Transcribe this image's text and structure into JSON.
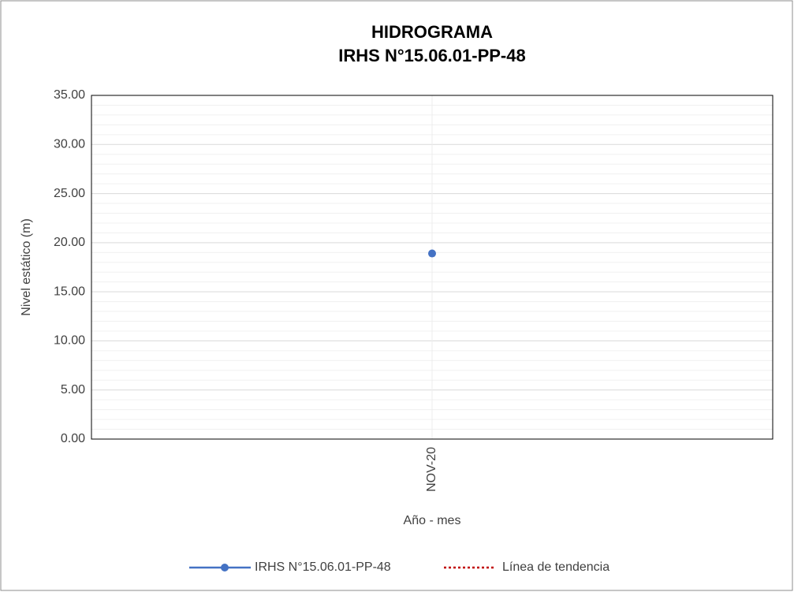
{
  "chart_data": {
    "type": "line",
    "title": "HIDROGRAMA",
    "subtitle": "IRHS N°15.06.01-PP-48",
    "x_label": "Año - mes",
    "y_label": "Nivel estático (m)",
    "categories": [
      "NOV-20"
    ],
    "series": [
      {
        "name": "IRHS N°15.06.01-PP-48",
        "color": "#4472c4",
        "values": [
          18.9
        ]
      }
    ],
    "trendline": {
      "name": "Línea de tendencia",
      "color": "#c00000"
    },
    "ylim": [
      0,
      35
    ],
    "yticks": [
      {
        "value": 0,
        "label": "0.00"
      },
      {
        "value": 5,
        "label": "5.00"
      },
      {
        "value": 10,
        "label": "10.00"
      },
      {
        "value": 15,
        "label": "15.00"
      },
      {
        "value": 20,
        "label": "20.00"
      },
      {
        "value": 25,
        "label": "25.00"
      },
      {
        "value": 30,
        "label": "30.00"
      },
      {
        "value": 35,
        "label": "35.00"
      }
    ],
    "yminorticks": [
      1,
      2,
      3,
      4,
      6,
      7,
      8,
      9,
      11,
      12,
      13,
      14,
      16,
      17,
      18,
      19,
      21,
      22,
      23,
      24,
      26,
      27,
      28,
      29,
      31,
      32,
      33,
      34
    ],
    "grid": true,
    "legend": "bottom"
  }
}
